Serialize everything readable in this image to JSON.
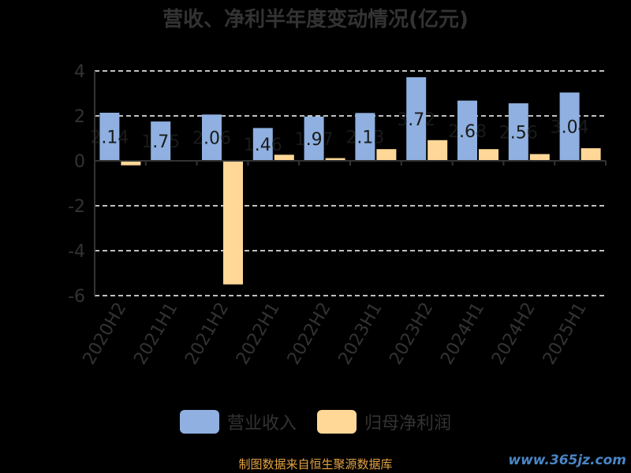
{
  "title": "营收、净利半年度变动情况(亿元)",
  "footer": "制图数据来自恒生聚源数据库",
  "watermark": "www.365jz.com",
  "colors": {
    "background": "#000000",
    "revenue": "#8fb0e0",
    "profit": "#ffd898",
    "axis": "#333333",
    "grid": "#ffffff"
  },
  "chart_data": {
    "type": "bar",
    "categories": [
      "2020H2",
      "2021H1",
      "2021H2",
      "2022H1",
      "2022H2",
      "2023H1",
      "2023H2",
      "2024H1",
      "2024H2",
      "2025H1"
    ],
    "series": [
      {
        "name": "营业收入",
        "values": [
          2.14,
          1.75,
          2.06,
          1.46,
          1.97,
          2.13,
          3.72,
          2.68,
          2.56,
          3.04
        ]
      },
      {
        "name": "归母净利润",
        "values": [
          -0.2,
          0.03,
          -5.5,
          0.27,
          0.12,
          0.52,
          0.92,
          0.52,
          0.3,
          0.56
        ]
      }
    ],
    "ylim": [
      -6,
      4
    ],
    "yticks": [
      4,
      2,
      0,
      -2,
      -4,
      -6
    ],
    "grid": true,
    "legend": "bottom-center",
    "data_labels_series": "营业收入"
  }
}
